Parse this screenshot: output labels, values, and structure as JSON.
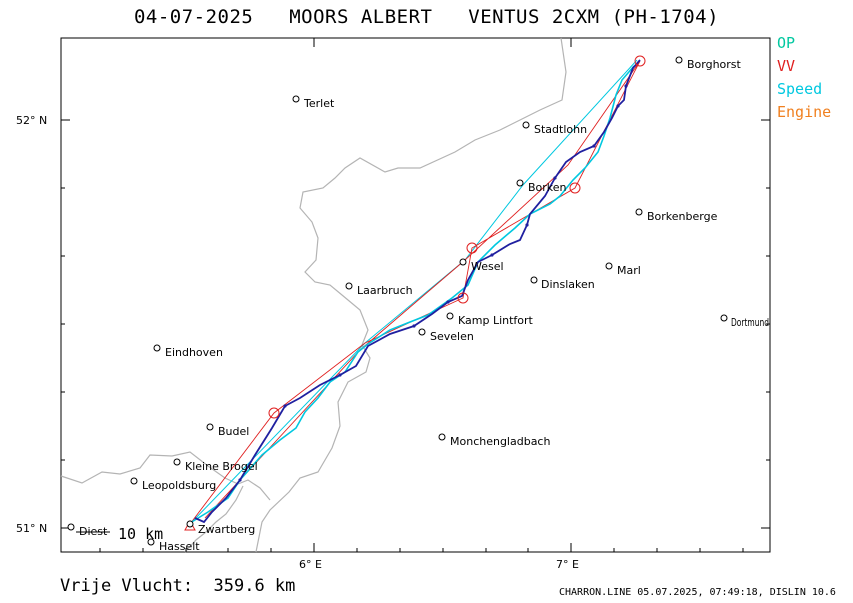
{
  "header": {
    "date": "04-07-2025",
    "pilot": "MOORS ALBERT",
    "glider": "VENTUS 2CXM (PH-1704)"
  },
  "legend": [
    {
      "label": "OP",
      "color": "#00c8a0"
    },
    {
      "label": "VV",
      "color": "#e02020"
    },
    {
      "label": "Speed",
      "color": "#00c8e0"
    },
    {
      "label": "Engine",
      "color": "#f08020"
    }
  ],
  "axes": {
    "lat_labels": [
      "52° N",
      "51° N"
    ],
    "lon_labels": [
      "6° E",
      "7° E"
    ]
  },
  "places": [
    {
      "name": "Borghorst"
    },
    {
      "name": "Terlet"
    },
    {
      "name": "Stadtlohn"
    },
    {
      "name": "Borken"
    },
    {
      "name": "Borkenberge"
    },
    {
      "name": "Wesel"
    },
    {
      "name": "Marl"
    },
    {
      "name": "Dinslaken"
    },
    {
      "name": "Laarbruch"
    },
    {
      "name": "Kamp Lintfort"
    },
    {
      "name": "Dortmund"
    },
    {
      "name": "Sevelen"
    },
    {
      "name": "Eindhoven"
    },
    {
      "name": "Budel"
    },
    {
      "name": "Monchengladbach"
    },
    {
      "name": "Kleine Brogel"
    },
    {
      "name": "Leopoldsburg"
    },
    {
      "name": "Zwartberg"
    },
    {
      "name": "Diest"
    },
    {
      "name": "Hasselt"
    }
  ],
  "scale": "10 km",
  "distance": "Vrije Vlucht:  359.6 km",
  "footer": "CHARRON.LINE 05.07.2025, 07:49:18, DISLIN 10.6"
}
